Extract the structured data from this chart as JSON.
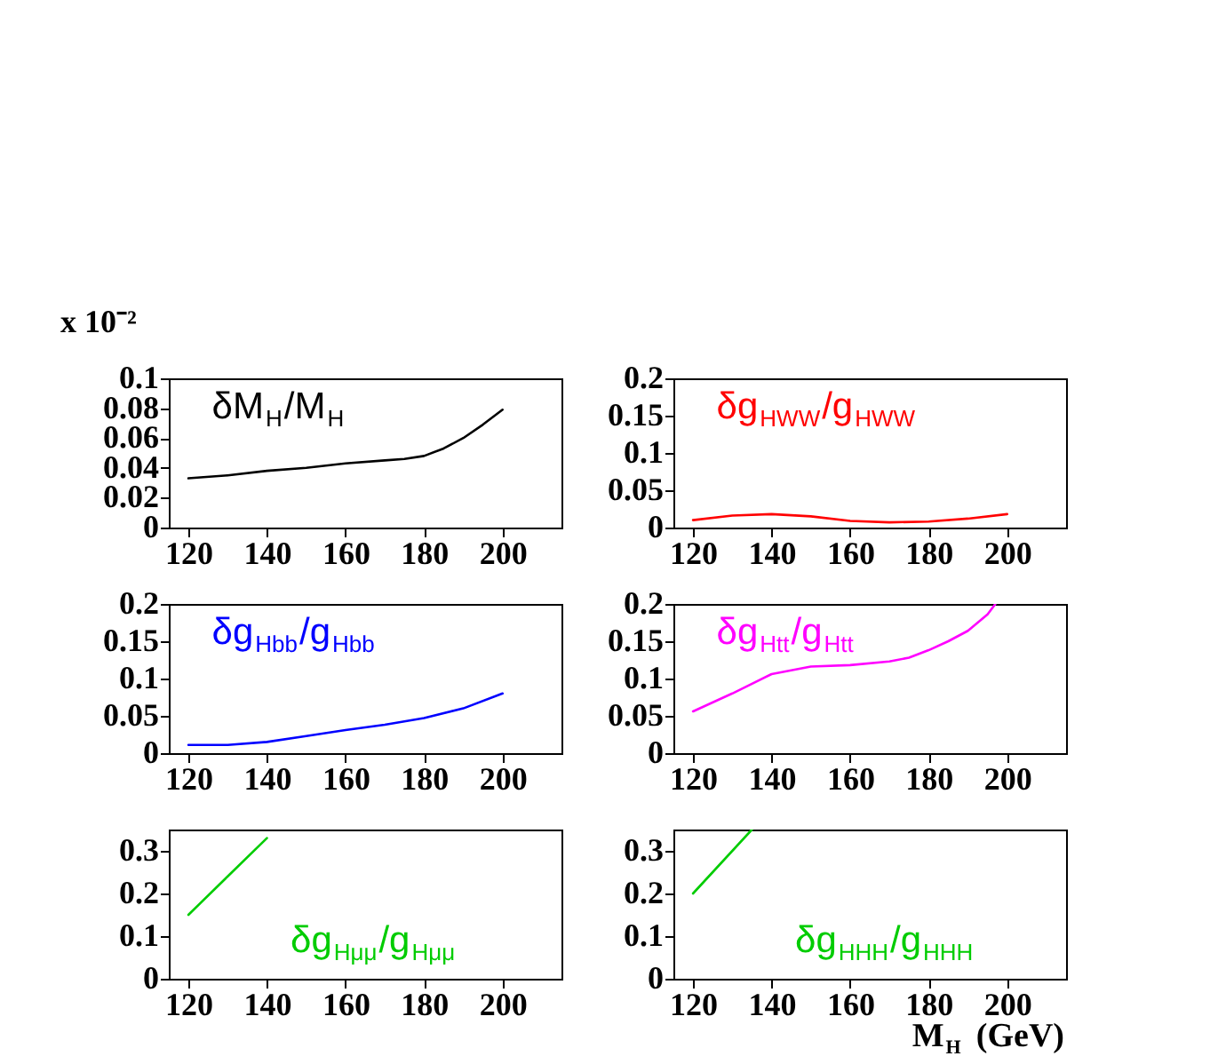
{
  "chart_data": [
    {
      "type": "line",
      "x": [
        120,
        130,
        140,
        150,
        160,
        170,
        175,
        180,
        185,
        190,
        195,
        200
      ],
      "series": [
        {
          "name": "δM$_{H}$/M$_{H}$",
          "color": "#000000",
          "values": [
            0.033,
            0.035,
            0.038,
            0.04,
            0.043,
            0.045,
            0.046,
            0.048,
            0.053,
            0.06,
            0.069,
            0.079
          ]
        }
      ],
      "xlim": [
        115,
        215
      ],
      "xticks": [
        120,
        140,
        160,
        180,
        200
      ],
      "ylim": [
        0,
        0.1
      ],
      "yticks": [
        0,
        0.02,
        0.04,
        0.06,
        0.08,
        0.1
      ],
      "annotations": [
        "x 10⁻²"
      ]
    },
    {
      "type": "line",
      "x": [
        120,
        130,
        140,
        150,
        160,
        170,
        180,
        190,
        200
      ],
      "series": [
        {
          "name": "δg$_{HWW}$/g$_{HWW}$",
          "color": "#ff0000",
          "values": [
            0.01,
            0.016,
            0.018,
            0.015,
            0.009,
            0.007,
            0.008,
            0.012,
            0.018
          ]
        }
      ],
      "xlim": [
        115,
        215
      ],
      "xticks": [
        120,
        140,
        160,
        180,
        200
      ],
      "ylim": [
        0,
        0.2
      ],
      "yticks": [
        0,
        0.05,
        0.1,
        0.15,
        0.2
      ]
    },
    {
      "type": "line",
      "x": [
        120,
        130,
        140,
        150,
        160,
        170,
        180,
        190,
        200
      ],
      "series": [
        {
          "name": "δg$_{Hbb}$/g$_{Hbb}$",
          "color": "#0000ff",
          "values": [
            0.011,
            0.011,
            0.015,
            0.023,
            0.031,
            0.038,
            0.047,
            0.06,
            0.08
          ]
        }
      ],
      "xlim": [
        115,
        215
      ],
      "xticks": [
        120,
        140,
        160,
        180,
        200
      ],
      "ylim": [
        0,
        0.2
      ],
      "yticks": [
        0,
        0.05,
        0.1,
        0.15,
        0.2
      ]
    },
    {
      "type": "line",
      "x": [
        120,
        130,
        140,
        150,
        160,
        170,
        175,
        180,
        185,
        190,
        195,
        197
      ],
      "series": [
        {
          "name": "δg$_{Htt}$/g$_{Htt}$",
          "color": "#ff00ff",
          "values": [
            0.056,
            0.08,
            0.106,
            0.116,
            0.118,
            0.123,
            0.128,
            0.138,
            0.15,
            0.164,
            0.186,
            0.2
          ]
        }
      ],
      "xlim": [
        115,
        215
      ],
      "xticks": [
        120,
        140,
        160,
        180,
        200
      ],
      "ylim": [
        0,
        0.2
      ],
      "yticks": [
        0,
        0.05,
        0.1,
        0.15,
        0.2
      ]
    },
    {
      "type": "line",
      "x": [
        120,
        130,
        140
      ],
      "series": [
        {
          "name": "δg$_{Hμμ}$/g$_{Hμμ}$",
          "color": "#00cc00",
          "values": [
            0.15,
            0.24,
            0.33
          ]
        }
      ],
      "xlim": [
        115,
        215
      ],
      "xticks": [
        120,
        140,
        160,
        180,
        200
      ],
      "ylim": [
        0,
        0.35
      ],
      "yticks": [
        0,
        0.1,
        0.2,
        0.3
      ]
    },
    {
      "type": "line",
      "x": [
        120,
        135
      ],
      "series": [
        {
          "name": "δg$_{HHH}$/g$_{HHH}$",
          "color": "#00cc00",
          "values": [
            0.2,
            0.35
          ]
        }
      ],
      "xlim": [
        115,
        215
      ],
      "xticks": [
        120,
        140,
        160,
        180,
        200
      ],
      "ylim": [
        0,
        0.35
      ],
      "yticks": [
        0,
        0.1,
        0.2,
        0.3
      ],
      "xlabel": "M$_{H}$ (GeV)"
    }
  ]
}
